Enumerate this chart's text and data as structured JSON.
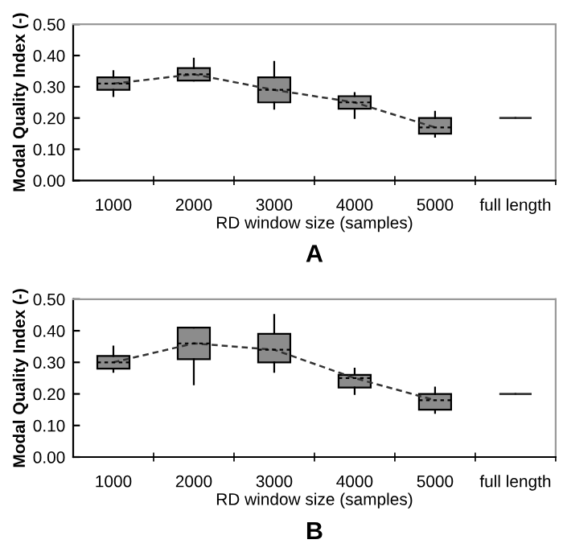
{
  "chart_data": [
    {
      "type": "box",
      "xlabel": "RD window size (samples)",
      "ylabel": "Modal Quality Index (-)",
      "annotations": [
        "A"
      ],
      "categories": [
        "1000",
        "2000",
        "3000",
        "4000",
        "5000",
        "full length"
      ],
      "ylim": [
        0,
        0.5
      ],
      "yticks": [
        {
          "value": 0,
          "label": "0.00"
        },
        {
          "value": 0.1,
          "label": "0.10"
        },
        {
          "value": 0.2,
          "label": "0.20"
        },
        {
          "value": 0.3,
          "label": "0.30"
        },
        {
          "value": 0.4,
          "label": "0.40"
        },
        {
          "value": 0.5,
          "label": "0.50"
        }
      ],
      "grid": false,
      "colors": [
        "#8c8c8c",
        "#8c8c8c",
        "#8c8c8c",
        "#8c8c8c",
        "#8c8c8c",
        "#333333"
      ],
      "boxes": [
        {
          "low": 0.27,
          "q1": 0.29,
          "median": 0.31,
          "q3": 0.33,
          "high": 0.35
        },
        {
          "low": 0.32,
          "q1": 0.32,
          "median": 0.34,
          "q3": 0.36,
          "high": 0.39
        },
        {
          "low": 0.23,
          "q1": 0.25,
          "median": 0.29,
          "q3": 0.33,
          "high": 0.38
        },
        {
          "low": 0.2,
          "q1": 0.23,
          "median": 0.25,
          "q3": 0.27,
          "high": 0.28
        },
        {
          "low": 0.14,
          "q1": 0.15,
          "median": 0.17,
          "q3": 0.2,
          "high": 0.22
        },
        {
          "low": 0.2,
          "q1": 0.2,
          "median": 0.2,
          "q3": 0.2,
          "high": 0.2
        }
      ],
      "series": [
        {
          "type": "line",
          "color": "#333333",
          "line_style": "dashed",
          "values": [
            0.31,
            0.34,
            0.29,
            0.25,
            0.17,
            null
          ]
        }
      ]
    },
    {
      "type": "box",
      "xlabel": "RD window size (samples)",
      "ylabel": "Modal Quality Index (-)",
      "annotations": [
        "B"
      ],
      "categories": [
        "1000",
        "2000",
        "3000",
        "4000",
        "5000",
        "full length"
      ],
      "ylim": [
        0,
        0.5
      ],
      "yticks": [
        {
          "value": 0,
          "label": "0.00"
        },
        {
          "value": 0.1,
          "label": "0.10"
        },
        {
          "value": 0.2,
          "label": "0.20"
        },
        {
          "value": 0.3,
          "label": "0.30"
        },
        {
          "value": 0.4,
          "label": "0.40"
        },
        {
          "value": 0.5,
          "label": "0.50"
        }
      ],
      "grid": false,
      "colors": [
        "#8c8c8c",
        "#8c8c8c",
        "#8c8c8c",
        "#8c8c8c",
        "#8c8c8c",
        "#333333"
      ],
      "boxes": [
        {
          "low": 0.27,
          "q1": 0.28,
          "median": 0.3,
          "q3": 0.32,
          "high": 0.35
        },
        {
          "low": 0.23,
          "q1": 0.31,
          "median": 0.36,
          "q3": 0.41,
          "high": 0.41
        },
        {
          "low": 0.27,
          "q1": 0.3,
          "median": 0.34,
          "q3": 0.39,
          "high": 0.45
        },
        {
          "low": 0.2,
          "q1": 0.22,
          "median": 0.25,
          "q3": 0.26,
          "high": 0.28
        },
        {
          "low": 0.14,
          "q1": 0.15,
          "median": 0.18,
          "q3": 0.2,
          "high": 0.22
        },
        {
          "low": 0.2,
          "q1": 0.2,
          "median": 0.2,
          "q3": 0.2,
          "high": 0.2
        }
      ],
      "series": [
        {
          "type": "line",
          "color": "#333333",
          "line_style": "dashed",
          "values": [
            0.3,
            0.36,
            0.34,
            0.25,
            0.18,
            null
          ]
        }
      ]
    }
  ]
}
